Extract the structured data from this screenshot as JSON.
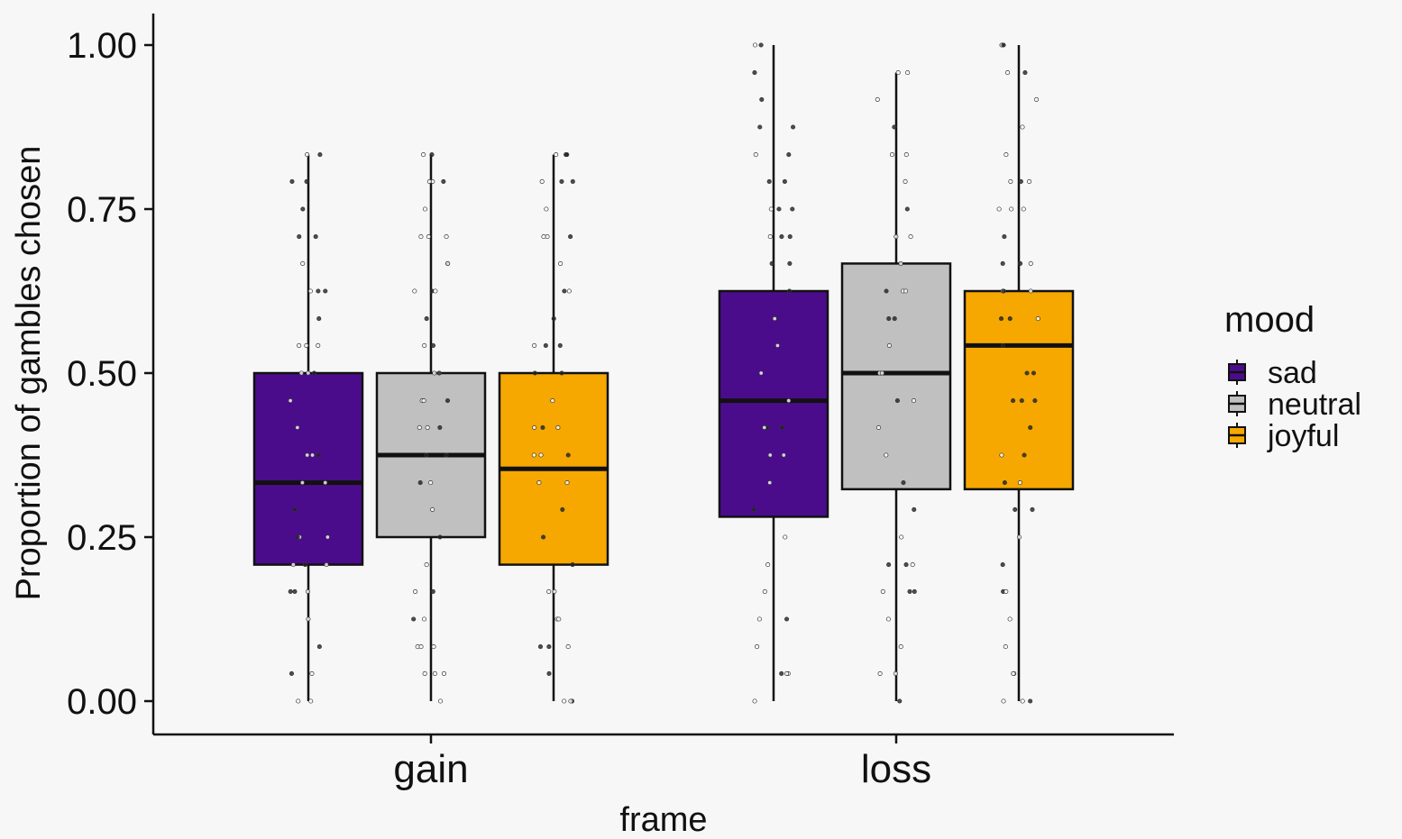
{
  "chart_data": {
    "type": "boxplot",
    "xlabel": "frame",
    "ylabel": "Proportion of gambles chosen",
    "ylim": [
      0,
      1
    ],
    "yticks": [
      "0.00",
      "0.25",
      "0.50",
      "0.75",
      "1.00"
    ],
    "ytick_values": [
      0,
      0.25,
      0.5,
      0.75,
      1.0
    ],
    "categories": [
      "gain",
      "loss"
    ],
    "legend": {
      "title": "mood",
      "placement": "right",
      "entries": [
        {
          "name": "sad",
          "color": "#4b0c8c"
        },
        {
          "name": "neutral",
          "color": "#c0c0c0"
        },
        {
          "name": "joyful",
          "color": "#f6a800"
        }
      ]
    },
    "series": [
      {
        "name": "sad",
        "color": "#4b0c8c",
        "boxes": [
          {
            "category": "gain",
            "min": 0.0,
            "q1": 0.208,
            "median": 0.333,
            "q3": 0.5,
            "max": 0.833
          },
          {
            "category": "loss",
            "min": 0.0,
            "q1": 0.281,
            "median": 0.458,
            "q3": 0.625,
            "max": 1.0
          }
        ]
      },
      {
        "name": "neutral",
        "color": "#c0c0c0",
        "boxes": [
          {
            "category": "gain",
            "min": 0.0,
            "q1": 0.25,
            "median": 0.375,
            "q3": 0.5,
            "max": 0.833
          },
          {
            "category": "loss",
            "min": 0.0,
            "q1": 0.323,
            "median": 0.5,
            "q3": 0.667,
            "max": 0.958
          }
        ]
      },
      {
        "name": "joyful",
        "color": "#f6a800",
        "boxes": [
          {
            "category": "gain",
            "min": 0.0,
            "q1": 0.208,
            "median": 0.354,
            "q3": 0.5,
            "max": 0.833
          },
          {
            "category": "loss",
            "min": 0.0,
            "q1": 0.323,
            "median": 0.542,
            "q3": 0.625,
            "max": 1.0
          }
        ]
      }
    ],
    "jitter_levels": [
      0,
      0.042,
      0.083,
      0.125,
      0.167,
      0.208,
      0.25,
      0.292,
      0.333,
      0.375,
      0.417,
      0.458,
      0.5,
      0.542,
      0.583,
      0.625,
      0.667,
      0.708,
      0.75,
      0.792,
      0.833,
      0.875,
      0.917,
      0.958,
      1.0
    ],
    "grid": false
  }
}
